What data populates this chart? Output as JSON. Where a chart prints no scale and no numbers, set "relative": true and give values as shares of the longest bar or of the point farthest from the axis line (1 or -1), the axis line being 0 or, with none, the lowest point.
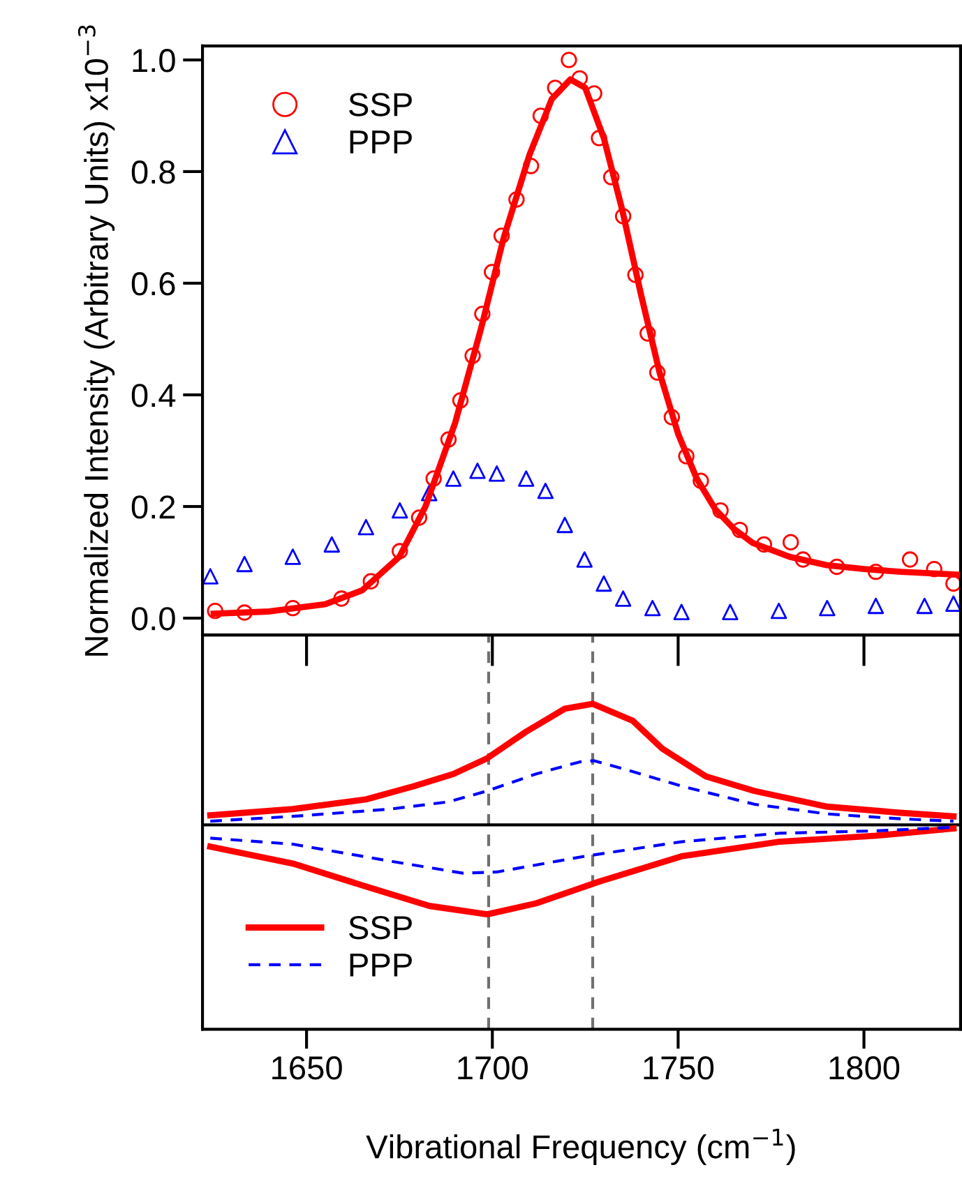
{
  "chart_data": [
    {
      "type": "scatter",
      "ylabel": "Normalized Intensity (Arbitrary Units) x10$^{−3}$",
      "xlim": [
        1622,
        1826
      ],
      "xticks": [
        1650,
        1700,
        1750,
        1800
      ],
      "ylim": [
        -0.03,
        1.025
      ],
      "yticks": [
        {
          "value": 0,
          "label": "0.0"
        },
        0.2,
        0.4,
        0.6,
        0.8,
        {
          "value": 1,
          "label": "1.0"
        }
      ],
      "tick_labels": "y",
      "legend": "top left",
      "series": [
        {
          "name": "SSP",
          "color": "#ff0000",
          "marker": "circle",
          "x": [
            1625.4,
            1633.3,
            1646.3,
            1659.4,
            1667.3,
            1675.1,
            1680.3,
            1684.2,
            1688.2,
            1691.4,
            1694.7,
            1697.3,
            1699.9,
            1702.5,
            1706.5,
            1710.4,
            1713,
            1716.9,
            1720.6,
            1723.5,
            1727.4,
            1728.7,
            1732,
            1735.2,
            1738.5,
            1741.8,
            1744.4,
            1748.3,
            1752.2,
            1756.1,
            1761.4,
            1766.6,
            1773.1,
            1780.3,
            1783.6,
            1792.7,
            1803.2,
            1812.4,
            1818.9,
            1824.1
          ],
          "values": [
            0.013,
            0.01,
            0.018,
            0.035,
            0.066,
            0.12,
            0.18,
            0.25,
            0.32,
            0.39,
            0.47,
            0.545,
            0.62,
            0.685,
            0.75,
            0.81,
            0.9,
            0.95,
            1.0,
            0.967,
            0.94,
            0.86,
            0.79,
            0.72,
            0.615,
            0.51,
            0.44,
            0.36,
            0.29,
            0.246,
            0.193,
            0.158,
            0.132,
            0.136,
            0.105,
            0.092,
            0.083,
            0.105,
            0.088,
            0.062
          ]
        },
        {
          "name": "PPP",
          "color": "#0000ff",
          "marker": "triangle",
          "x": [
            1624.1,
            1633.3,
            1646.3,
            1656.8,
            1666,
            1675.1,
            1683,
            1689.5,
            1696,
            1701.2,
            1709.1,
            1714.3,
            1719.5,
            1724.8,
            1730,
            1735.2,
            1743.1,
            1750.9,
            1764,
            1777.1,
            1790.1,
            1803.2,
            1816.3,
            1824.1
          ],
          "values": [
            0.075,
            0.097,
            0.11,
            0.132,
            0.163,
            0.193,
            0.224,
            0.25,
            0.264,
            0.259,
            0.25,
            0.228,
            0.167,
            0.105,
            0.062,
            0.035,
            0.018,
            0.011,
            0.011,
            0.013,
            0.018,
            0.022,
            0.022,
            0.026
          ]
        },
        {
          "type": "line",
          "color": "#ff0000",
          "line_style": "solid",
          "x": [
            1625,
            1640,
            1655,
            1665,
            1675,
            1682,
            1690,
            1697,
            1703,
            1710,
            1716,
            1721,
            1725,
            1730,
            1735,
            1740,
            1745,
            1750,
            1755,
            1760,
            1765,
            1770,
            1780,
            1790,
            1800,
            1810,
            1825
          ],
          "values": [
            0.008,
            0.012,
            0.025,
            0.05,
            0.11,
            0.2,
            0.35,
            0.52,
            0.68,
            0.83,
            0.93,
            0.965,
            0.95,
            0.86,
            0.73,
            0.58,
            0.44,
            0.33,
            0.25,
            0.195,
            0.16,
            0.135,
            0.11,
            0.095,
            0.088,
            0.083,
            0.078
          ]
        }
      ]
    },
    {
      "type": "line",
      "relative": true,
      "xlabel": "Vibrational Frequency (cm$^{−1}$)",
      "xlim": [
        1622,
        1826
      ],
      "xticks": [
        1650,
        1700,
        1750,
        1800
      ],
      "tick_labels": "x",
      "legend": "bottom left",
      "ref_lines": [
        {
          "axis": "x",
          "value": 1699,
          "color": "#707070",
          "line_style": "dashed"
        },
        {
          "axis": "x",
          "value": 1727,
          "color": "#707070",
          "line_style": "dashed"
        }
      ],
      "series": [
        {
          "name": "SSP",
          "color": "#ff0000",
          "line_style": "solid",
          "x": [
            1624.1,
            1646.3,
            1666,
            1679,
            1689.5,
            1698.6,
            1709.1,
            1719.5,
            1727,
            1737.8,
            1745.7,
            1757.5,
            1770.5,
            1790.1,
            1809.7,
            1824.1
          ],
          "values": [
            0.079,
            0.13,
            0.21,
            0.32,
            0.42,
            0.55,
            0.77,
            0.96,
            1,
            0.86,
            0.63,
            0.4,
            0.28,
            0.15,
            0.1,
            0.07
          ]
        },
        {
          "name": "PPP",
          "color": "#0000ff",
          "line_style": "dashed",
          "x": [
            1624.1,
            1646.3,
            1672.5,
            1688.2,
            1698.6,
            1711.7,
            1723.5,
            1727.4,
            1737.8,
            1750.9,
            1770.5,
            1790.1,
            1809.7,
            1824.1
          ],
          "values": [
            0.03,
            0.07,
            0.13,
            0.19,
            0.28,
            0.42,
            0.52,
            0.53,
            0.44,
            0.32,
            0.17,
            0.09,
            0.05,
            0.03
          ]
        },
        {
          "color": "#ff0000",
          "line_style": "solid",
          "x": [
            1624.1,
            1646.3,
            1666,
            1683,
            1698.6,
            1711.7,
            1728.7,
            1750.9,
            1777.1,
            1803.2,
            1824.1
          ],
          "values": [
            -0.18,
            -0.32,
            -0.51,
            -0.67,
            -0.74,
            -0.65,
            -0.47,
            -0.26,
            -0.14,
            -0.09,
            -0.03
          ]
        },
        {
          "color": "#0000ff",
          "line_style": "dashed",
          "x": [
            1624.1,
            1646.3,
            1672.5,
            1692.1,
            1701.2,
            1724.8,
            1750.9,
            1777.1,
            1803.2,
            1824.1
          ],
          "values": [
            -0.11,
            -0.16,
            -0.3,
            -0.4,
            -0.39,
            -0.26,
            -0.14,
            -0.07,
            -0.05,
            -0.02
          ]
        }
      ]
    }
  ]
}
